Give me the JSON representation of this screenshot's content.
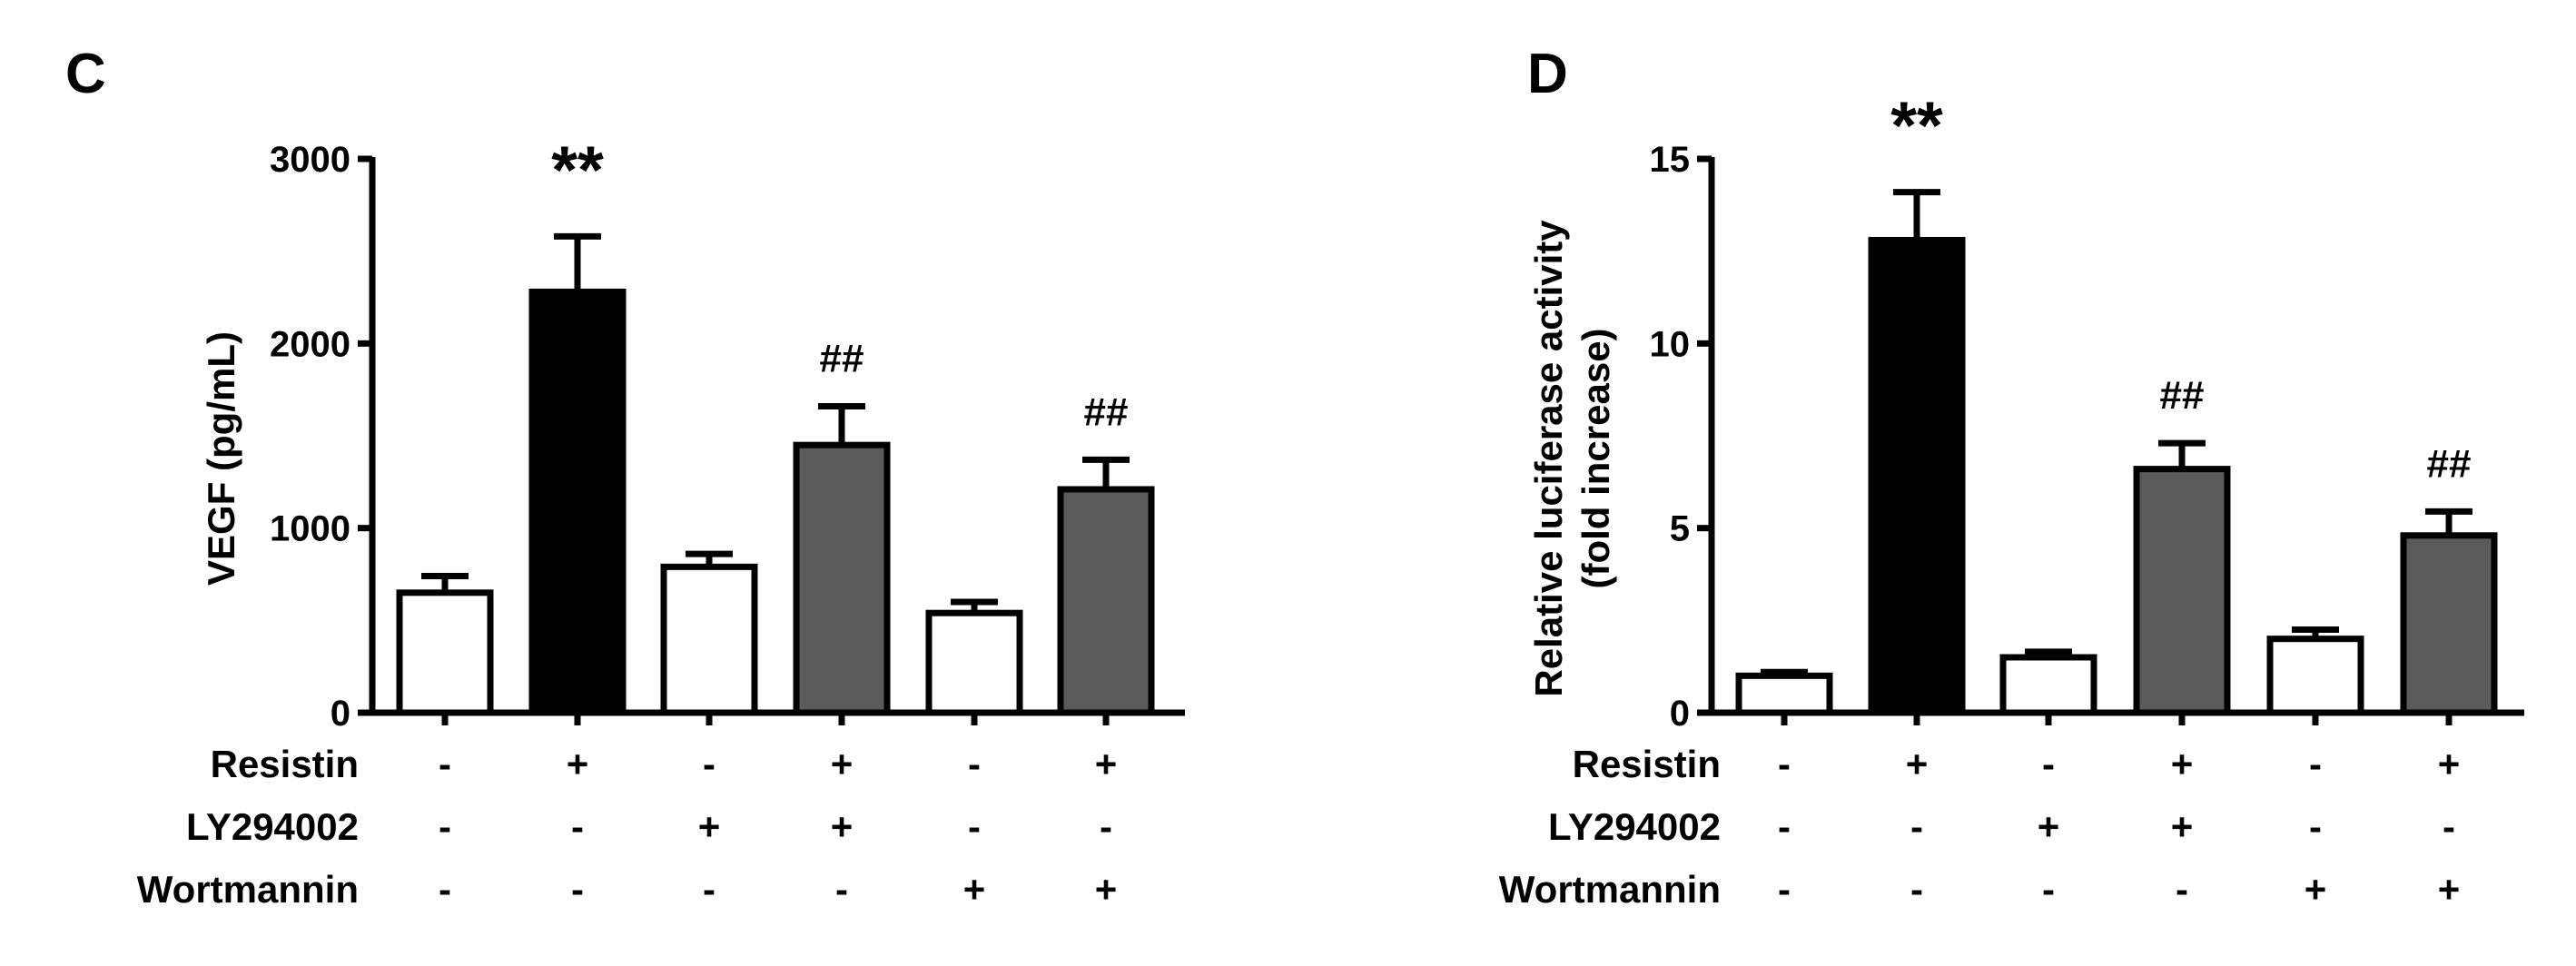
{
  "chart_data": [
    {
      "type": "bar",
      "panel": "C",
      "ylabel": "VEGF (pg/mL)",
      "ylim": [
        0,
        3000
      ],
      "yticks": [
        0,
        1000,
        2000,
        3000
      ],
      "ytick_labels": [
        "0",
        "1000",
        "2000",
        "3000"
      ],
      "values": [
        650,
        2280,
        790,
        1450,
        540,
        1210
      ],
      "errors": [
        90,
        300,
        70,
        210,
        60,
        160
      ],
      "fills": [
        "white",
        "black",
        "white",
        "gray",
        "white",
        "gray"
      ],
      "annotations": [
        "",
        "**",
        "",
        "##",
        "",
        "##"
      ],
      "conditions": [
        {
          "label": "Resistin",
          "signs": [
            "-",
            "+",
            "-",
            "+",
            "-",
            "+"
          ]
        },
        {
          "label": "LY294002",
          "signs": [
            "-",
            "-",
            "+",
            "+",
            "-",
            "-"
          ]
        },
        {
          "label": "Wortmannin",
          "signs": [
            "-",
            "-",
            "-",
            "-",
            "+",
            "+"
          ]
        }
      ]
    },
    {
      "type": "bar",
      "panel": "D",
      "ylabel": [
        "Relative luciferase activity",
        "(fold increase)"
      ],
      "ylim": [
        0,
        15
      ],
      "yticks": [
        0,
        5,
        10,
        15
      ],
      "ytick_labels": [
        "0",
        "5",
        "10",
        "15"
      ],
      "values": [
        1.0,
        12.8,
        1.5,
        6.6,
        2.0,
        4.8
      ],
      "errors": [
        0.1,
        1.3,
        0.15,
        0.7,
        0.25,
        0.65
      ],
      "fills": [
        "white",
        "black",
        "white",
        "gray",
        "white",
        "gray"
      ],
      "annotations": [
        "",
        "**",
        "",
        "##",
        "",
        "##"
      ],
      "conditions": [
        {
          "label": "Resistin",
          "signs": [
            "-",
            "+",
            "-",
            "+",
            "-",
            "+"
          ]
        },
        {
          "label": "LY294002",
          "signs": [
            "-",
            "-",
            "+",
            "+",
            "-",
            "-"
          ]
        },
        {
          "label": "Wortmannin",
          "signs": [
            "-",
            "-",
            "-",
            "-",
            "+",
            "+"
          ]
        }
      ]
    }
  ],
  "colors": {
    "white": "#ffffff",
    "black": "#000000",
    "gray": "#5a5a5a",
    "axis": "#000000"
  }
}
